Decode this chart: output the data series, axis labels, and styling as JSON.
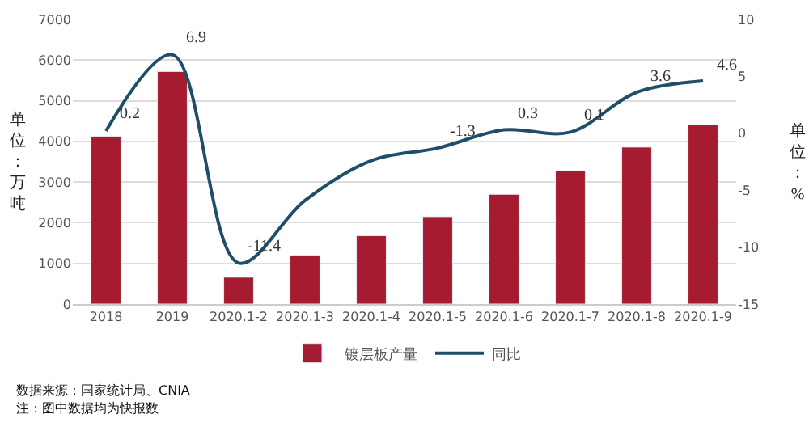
{
  "chart_data": {
    "type": "bar",
    "categories": [
      "2018",
      "2019",
      "2020.1-2",
      "2020.1-3",
      "2020.1-4",
      "2020.1-5",
      "2020.1-6",
      "2020.1-7",
      "2020.1-8",
      "2020.1-9"
    ],
    "series": [
      {
        "name": "镀层板产量",
        "color": "#a51c30",
        "values": [
          4120,
          5720,
          660,
          1200,
          1680,
          2150,
          2700,
          3280,
          3860,
          4410
        ]
      },
      {
        "name": "同比",
        "type": "line",
        "axis": "y2",
        "color": "#1f4e6b",
        "values": [
          0.2,
          6.9,
          -11.4,
          -5.9,
          -2.4,
          -1.3,
          0.3,
          0.1,
          3.6,
          4.6
        ],
        "value_labels": [
          "0.2",
          "6.9",
          "-11.4",
          null,
          null,
          "-1.3",
          "0.3",
          "0.1",
          "3.6",
          "4.6"
        ]
      }
    ],
    "ylabel": "单位：万吨",
    "y2label": "单位：%",
    "ylim": [
      0,
      7000
    ],
    "yticks": [
      0,
      1000,
      2000,
      3000,
      4000,
      5000,
      6000,
      7000
    ],
    "y2lim": [
      -15,
      10
    ],
    "y2ticks": [
      -15,
      -10,
      -5,
      0,
      5,
      10
    ],
    "grid": "y",
    "legend": "bottom",
    "annotations": [
      "数据来源：国家统计局、CNIA",
      "注：图中数据均为快报数"
    ]
  }
}
